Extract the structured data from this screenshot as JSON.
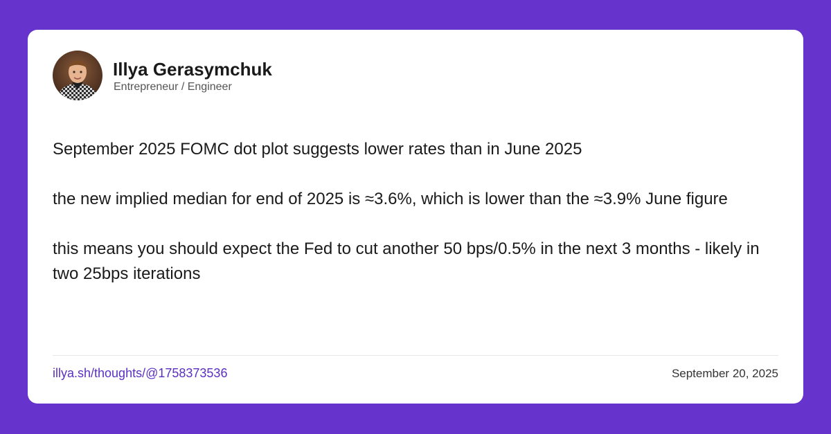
{
  "colors": {
    "background": "#6633cc",
    "card": "#ffffff",
    "link": "#5a2fc2"
  },
  "author": {
    "avatar_icon": "profile-photo",
    "name": "Illya Gerasymchuk",
    "title": "Entrepreneur / Engineer"
  },
  "post": {
    "paragraphs": [
      "September 2025 FOMC dot plot suggests lower rates than in June 2025",
      "the new implied median for end of 2025 is ≈3.6%, which is lower than the ≈3.9% June figure",
      "this means you should expect the Fed to cut another 50 bps/0.5% in the next 3 months - likely in two 25bps iterations"
    ]
  },
  "footer": {
    "link_text": "illya.sh/thoughts/@1758373536",
    "date": "September 20, 2025"
  }
}
